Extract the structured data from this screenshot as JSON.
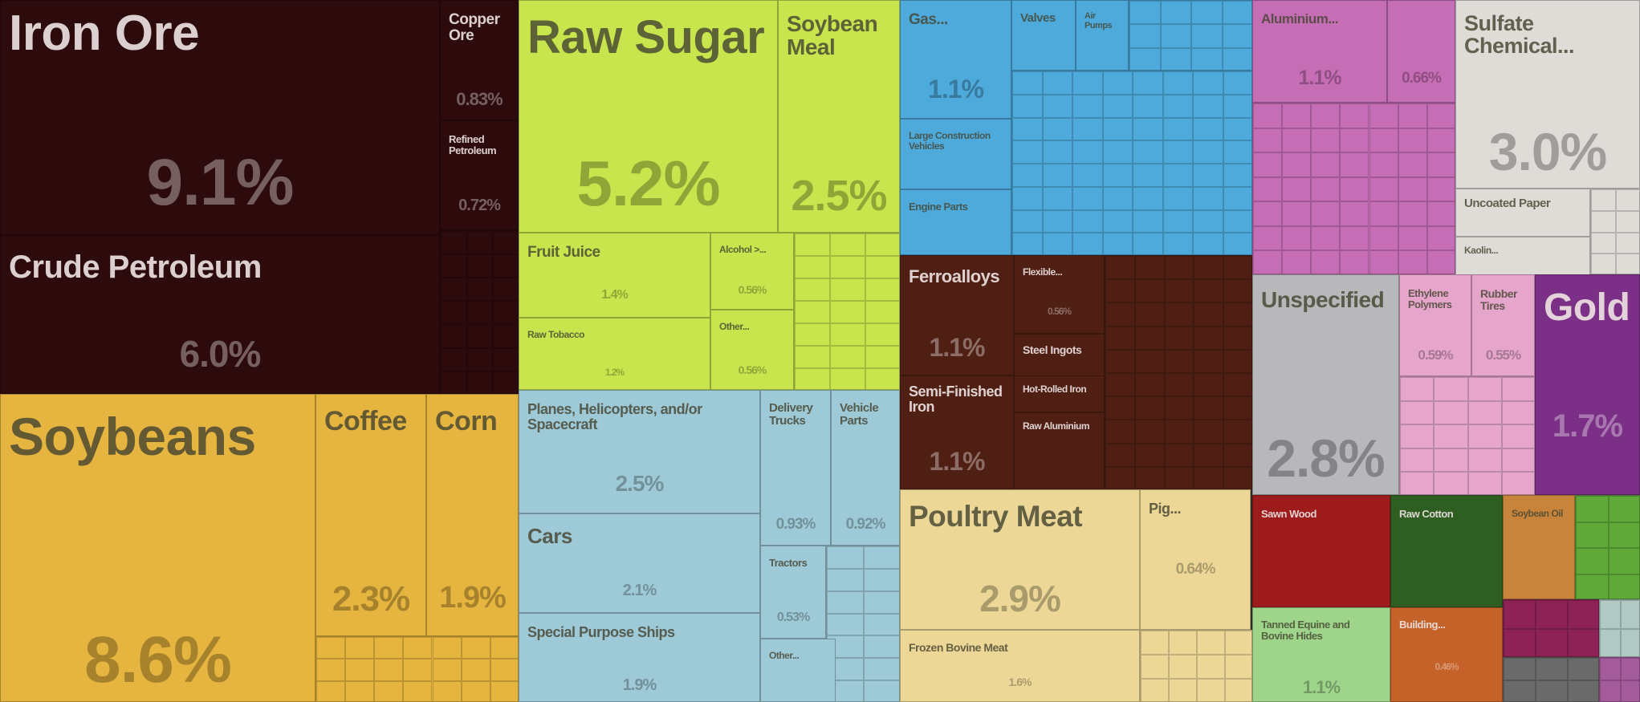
{
  "chart_data": {
    "type": "treemap",
    "title": "",
    "value_unit": "% of total exports",
    "items": [
      {
        "label": "Iron Ore",
        "value": "9.1%",
        "color": "#2d0a0c"
      },
      {
        "label": "Crude Petroleum",
        "value": "6.0%",
        "color": "#2d0a0c"
      },
      {
        "label": "Copper Ore",
        "value": "0.83%",
        "color": "#2d0a0c"
      },
      {
        "label": "Refined Petroleum",
        "value": "0.72%",
        "color": "#2d0a0c"
      },
      {
        "label": "Soybeans",
        "value": "8.6%",
        "color": "#e6b53f"
      },
      {
        "label": "Coffee",
        "value": "2.3%",
        "color": "#e6b53f"
      },
      {
        "label": "Corn",
        "value": "1.9%",
        "color": "#e6b53f"
      },
      {
        "label": "Raw Sugar",
        "value": "5.2%",
        "color": "#c8e54d"
      },
      {
        "label": "Soybean Meal",
        "value": "2.5%",
        "color": "#c8e54d"
      },
      {
        "label": "Fruit Juice",
        "value": "1.4%",
        "color": "#c8e54d"
      },
      {
        "label": "Alcohol >...",
        "value": "0.56%",
        "color": "#c8e54d"
      },
      {
        "label": "Raw Tobacco",
        "value": "1.2%",
        "color": "#c8e54d"
      },
      {
        "label": "Other...",
        "value": "0.56%",
        "color": "#c8e54d"
      },
      {
        "label": "Planes, Helicopters, and/or Spacecraft",
        "value": "2.5%",
        "color": "#9ec9d6"
      },
      {
        "label": "Delivery Trucks",
        "value": "0.93%",
        "color": "#9ec9d6"
      },
      {
        "label": "Vehicle Parts",
        "value": "0.92%",
        "color": "#9ec9d6"
      },
      {
        "label": "Cars",
        "value": "2.1%",
        "color": "#9ec9d6"
      },
      {
        "label": "Tractors",
        "value": "0.53%",
        "color": "#9ec9d6"
      },
      {
        "label": "Special Purpose Ships",
        "value": "1.9%",
        "color": "#9ec9d6"
      },
      {
        "label": "Other...",
        "value": "",
        "color": "#9ec9d6"
      },
      {
        "label": "Gas...",
        "value": "1.1%",
        "color": "#4eaadb"
      },
      {
        "label": "Valves",
        "value": "",
        "color": "#4eaadb"
      },
      {
        "label": "Air Pumps",
        "value": "",
        "color": "#4eaadb"
      },
      {
        "label": "Large Construction Vehicles",
        "value": "",
        "color": "#4eaadb"
      },
      {
        "label": "Engine Parts",
        "value": "",
        "color": "#4eaadb"
      },
      {
        "label": "Ferroalloys",
        "value": "1.1%",
        "color": "#4f1f14"
      },
      {
        "label": "Flexible...",
        "value": "0.56%",
        "color": "#4f1f14"
      },
      {
        "label": "Steel Ingots",
        "value": "",
        "color": "#4f1f14"
      },
      {
        "label": "Semi-Finished Iron",
        "value": "1.1%",
        "color": "#4f1f14"
      },
      {
        "label": "Hot-Rolled Iron",
        "value": "",
        "color": "#4f1f14"
      },
      {
        "label": "Raw Aluminium",
        "value": "",
        "color": "#4f1f14"
      },
      {
        "label": "Poultry Meat",
        "value": "2.9%",
        "color": "#ecd796"
      },
      {
        "label": "Pig...",
        "value": "0.64%",
        "color": "#ecd796"
      },
      {
        "label": "Frozen Bovine Meat",
        "value": "1.6%",
        "color": "#ecd796"
      },
      {
        "label": "Aluminium...",
        "value": "1.1%",
        "color": "#c56db5"
      },
      {
        "label": "",
        "value": "0.66%",
        "color": "#c56db5"
      },
      {
        "label": "Sulfate Chemical...",
        "value": "3.0%",
        "color": "#dedcd7"
      },
      {
        "label": "Uncoated Paper",
        "value": "",
        "color": "#dedcd7"
      },
      {
        "label": "Kaolin...",
        "value": "",
        "color": "#dedcd7"
      },
      {
        "label": "Unspecified",
        "value": "2.8%",
        "color": "#b8b8bb"
      },
      {
        "label": "Ethylene Polymers",
        "value": "0.59%",
        "color": "#e6a6cc"
      },
      {
        "label": "Rubber Tires",
        "value": "0.55%",
        "color": "#e6a6cc"
      },
      {
        "label": "Gold",
        "value": "1.7%",
        "color": "#7b2f86"
      },
      {
        "label": "Sawn Wood",
        "value": "",
        "color": "#9e1b1b"
      },
      {
        "label": "Raw Cotton",
        "value": "",
        "color": "#2e5e22"
      },
      {
        "label": "Soybean Oil",
        "value": "",
        "color": "#c8843a"
      },
      {
        "label": "Tanned Equine and Bovine Hides",
        "value": "1.1%",
        "color": "#9ed58a"
      },
      {
        "label": "Building...",
        "value": "0.46%",
        "color": "#c4622a"
      }
    ]
  }
}
